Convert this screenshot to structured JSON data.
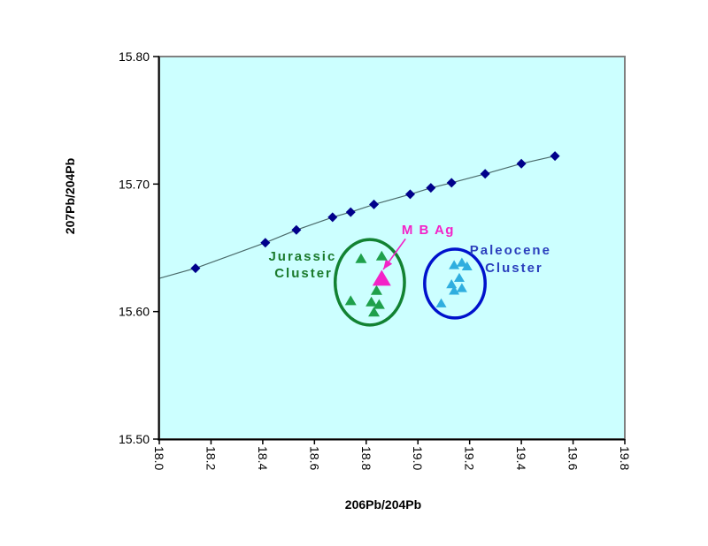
{
  "chart_data": {
    "type": "scatter",
    "title": "",
    "xlabel": "206Pb/204Pb",
    "ylabel": "207Pb/204Pb",
    "xlim": [
      18.0,
      19.8
    ],
    "ylim": [
      15.5,
      15.8
    ],
    "grid": false,
    "legend": "none",
    "plot_bg": "#CCFFFF",
    "plot_border": "#808080",
    "axis_color": "#000000",
    "x_ticks": [
      {
        "value": 18.0,
        "label": "18.0"
      },
      {
        "value": 18.2,
        "label": "18.2"
      },
      {
        "value": 18.4,
        "label": "18.4"
      },
      {
        "value": 18.6,
        "label": "18.6"
      },
      {
        "value": 18.8,
        "label": "18.8"
      },
      {
        "value": 19.0,
        "label": "19.0"
      },
      {
        "value": 19.2,
        "label": "19.2"
      },
      {
        "value": 19.4,
        "label": "19.4"
      },
      {
        "value": 19.6,
        "label": "19.6"
      },
      {
        "value": 19.8,
        "label": "19.8"
      }
    ],
    "y_ticks": [
      {
        "value": 15.5,
        "label": "15.50"
      },
      {
        "value": 15.6,
        "label": "15.60"
      },
      {
        "value": 15.7,
        "label": "15.70"
      },
      {
        "value": 15.8,
        "label": "15.80"
      }
    ],
    "series": [
      {
        "name": "growth-curve",
        "marker": "diamond",
        "marker_color": "#00008B",
        "marker_size": 11,
        "connect": true,
        "line_color": "#4A6A6A",
        "line_start": [
          18.0,
          15.626
        ],
        "points": [
          [
            18.14,
            15.634
          ],
          [
            18.41,
            15.654
          ],
          [
            18.53,
            15.664
          ],
          [
            18.67,
            15.674
          ],
          [
            18.74,
            15.678
          ],
          [
            18.83,
            15.684
          ],
          [
            18.97,
            15.692
          ],
          [
            19.05,
            15.697
          ],
          [
            19.13,
            15.701
          ],
          [
            19.26,
            15.708
          ],
          [
            19.4,
            15.716
          ],
          [
            19.53,
            15.722
          ]
        ]
      },
      {
        "name": "jurassic-cluster",
        "marker": "triangle",
        "marker_color": "#1FA04B",
        "marker_size": 13,
        "connect": false,
        "points": [
          [
            18.78,
            15.641
          ],
          [
            18.86,
            15.643
          ],
          [
            18.74,
            15.608
          ],
          [
            18.84,
            15.616
          ],
          [
            18.82,
            15.607
          ],
          [
            18.85,
            15.605
          ],
          [
            18.83,
            15.599
          ]
        ]
      },
      {
        "name": "paleocene-cluster",
        "marker": "triangle",
        "marker_color": "#2FAEDF",
        "marker_size": 12,
        "connect": false,
        "points": [
          [
            19.14,
            15.636
          ],
          [
            19.17,
            15.638
          ],
          [
            19.19,
            15.635
          ],
          [
            19.16,
            15.626
          ],
          [
            19.13,
            15.621
          ],
          [
            19.17,
            15.618
          ],
          [
            19.14,
            15.616
          ],
          [
            19.09,
            15.606
          ]
        ]
      },
      {
        "name": "mb-ag-sample",
        "marker": "triangle",
        "marker_color": "#F322C7",
        "marker_size": 21,
        "connect": false,
        "points": [
          [
            18.86,
            15.625
          ]
        ]
      }
    ],
    "ellipses": [
      {
        "name": "jurassic-ellipse",
        "color": "#128232",
        "stroke_width": 3.5,
        "cx": 18.814,
        "cy": 15.623,
        "rx": 0.134,
        "ry": 0.0335
      },
      {
        "name": "paleocene-ellipse",
        "color": "#0011CC",
        "stroke_width": 3.5,
        "cx": 19.143,
        "cy": 15.622,
        "rx": 0.117,
        "ry": 0.027
      }
    ],
    "annotations": [
      {
        "name": "jurassic-label-line1",
        "text": "Jurassic",
        "color": "#1A7A2C",
        "x": 18.554,
        "y": 15.643
      },
      {
        "name": "jurassic-label-line2",
        "text": "Cluster",
        "color": "#1A7A2C",
        "x": 18.558,
        "y": 15.63
      },
      {
        "name": "paleocene-label-line1",
        "text": "Paleocene",
        "color": "#2B3FBD",
        "x": 19.358,
        "y": 15.648
      },
      {
        "name": "paleocene-label-line2",
        "text": "Cluster",
        "color": "#2B3FBD",
        "x": 19.372,
        "y": 15.634
      },
      {
        "name": "mb-ag-label",
        "text": "M B Ag",
        "color": "#F322C7",
        "x": 19.04,
        "y": 15.664
      }
    ],
    "arrow": {
      "name": "mb-ag-arrow",
      "color": "#F322C7",
      "from": [
        18.952,
        15.657
      ],
      "to": [
        18.866,
        15.633
      ]
    }
  }
}
